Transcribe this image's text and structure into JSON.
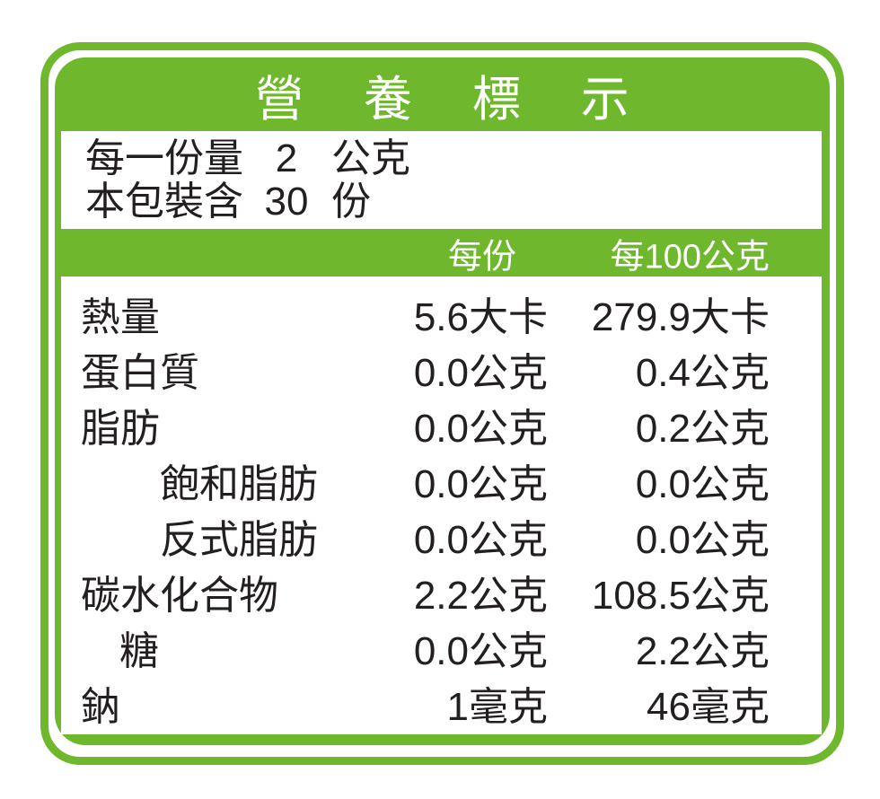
{
  "label": {
    "title": "營 養 標 示",
    "colors": {
      "green": "#6fb82d",
      "text": "#231f20"
    },
    "serving": [
      {
        "label": "每一份量",
        "value": "2",
        "unit": "公克"
      },
      {
        "label": "本包裝含",
        "value": "30",
        "unit": "份"
      }
    ],
    "columns": {
      "per_serving": "每份",
      "per_100g": "每100公克"
    },
    "rows": [
      {
        "name": "熱量",
        "indent": 0,
        "per_serving": "5.6大卡",
        "per_100g": "279.9大卡"
      },
      {
        "name": "蛋白質",
        "indent": 0,
        "per_serving": "0.0公克",
        "per_100g": "0.4公克"
      },
      {
        "name": "脂肪",
        "indent": 0,
        "per_serving": "0.0公克",
        "per_100g": "0.2公克"
      },
      {
        "name": "飽和脂肪",
        "indent": 2,
        "per_serving": "0.0公克",
        "per_100g": "0.0公克"
      },
      {
        "name": "反式脂肪",
        "indent": 2,
        "per_serving": "0.0公克",
        "per_100g": "0.0公克"
      },
      {
        "name": "碳水化合物",
        "indent": 0,
        "per_serving": "2.2公克",
        "per_100g": "108.5公克"
      },
      {
        "name": "糖",
        "indent": 1,
        "per_serving": "0.0公克",
        "per_100g": "2.2公克"
      },
      {
        "name": "鈉",
        "indent": 0,
        "per_serving": "1毫克",
        "per_100g": "46毫克"
      }
    ]
  }
}
